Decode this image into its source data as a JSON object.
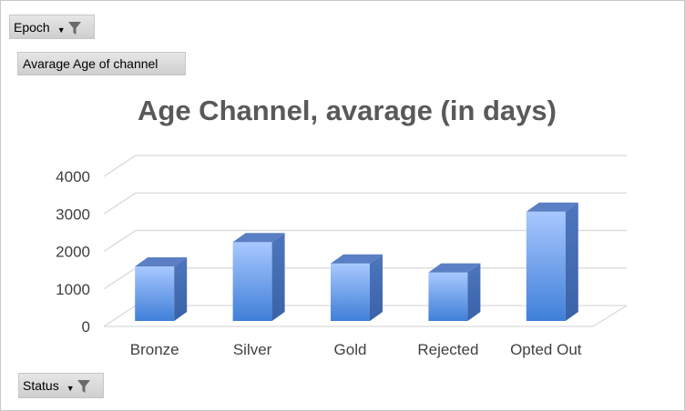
{
  "filters": {
    "epoch_label": "Epoch",
    "status_label": "Status",
    "value_field_label": "Avarage Age of channel"
  },
  "icons": {
    "filter": "funnel-filter-icon",
    "dropdown": "dropdown-caret-icon"
  },
  "chart_data": {
    "type": "bar",
    "title": "Age Channel, avarage (in days)",
    "xlabel": "",
    "ylabel": "",
    "categories": [
      "Bronze",
      "Silver",
      "Gold",
      "Rejected",
      "Opted Out"
    ],
    "values": [
      1600,
      2250,
      1680,
      1440,
      3060
    ],
    "ylim": [
      0,
      4000
    ],
    "yticks": [
      0,
      1000,
      2000,
      3000,
      4000
    ],
    "grid": true,
    "legend": "none",
    "three_d": true,
    "colors": {
      "bar_top_light": "#a8c8ff",
      "bar_front_bottom": "#3f7fd8",
      "bar_side": "#3a62a8",
      "bar_top": "#5a7fc4",
      "gridline": "#d9d9d9"
    }
  }
}
